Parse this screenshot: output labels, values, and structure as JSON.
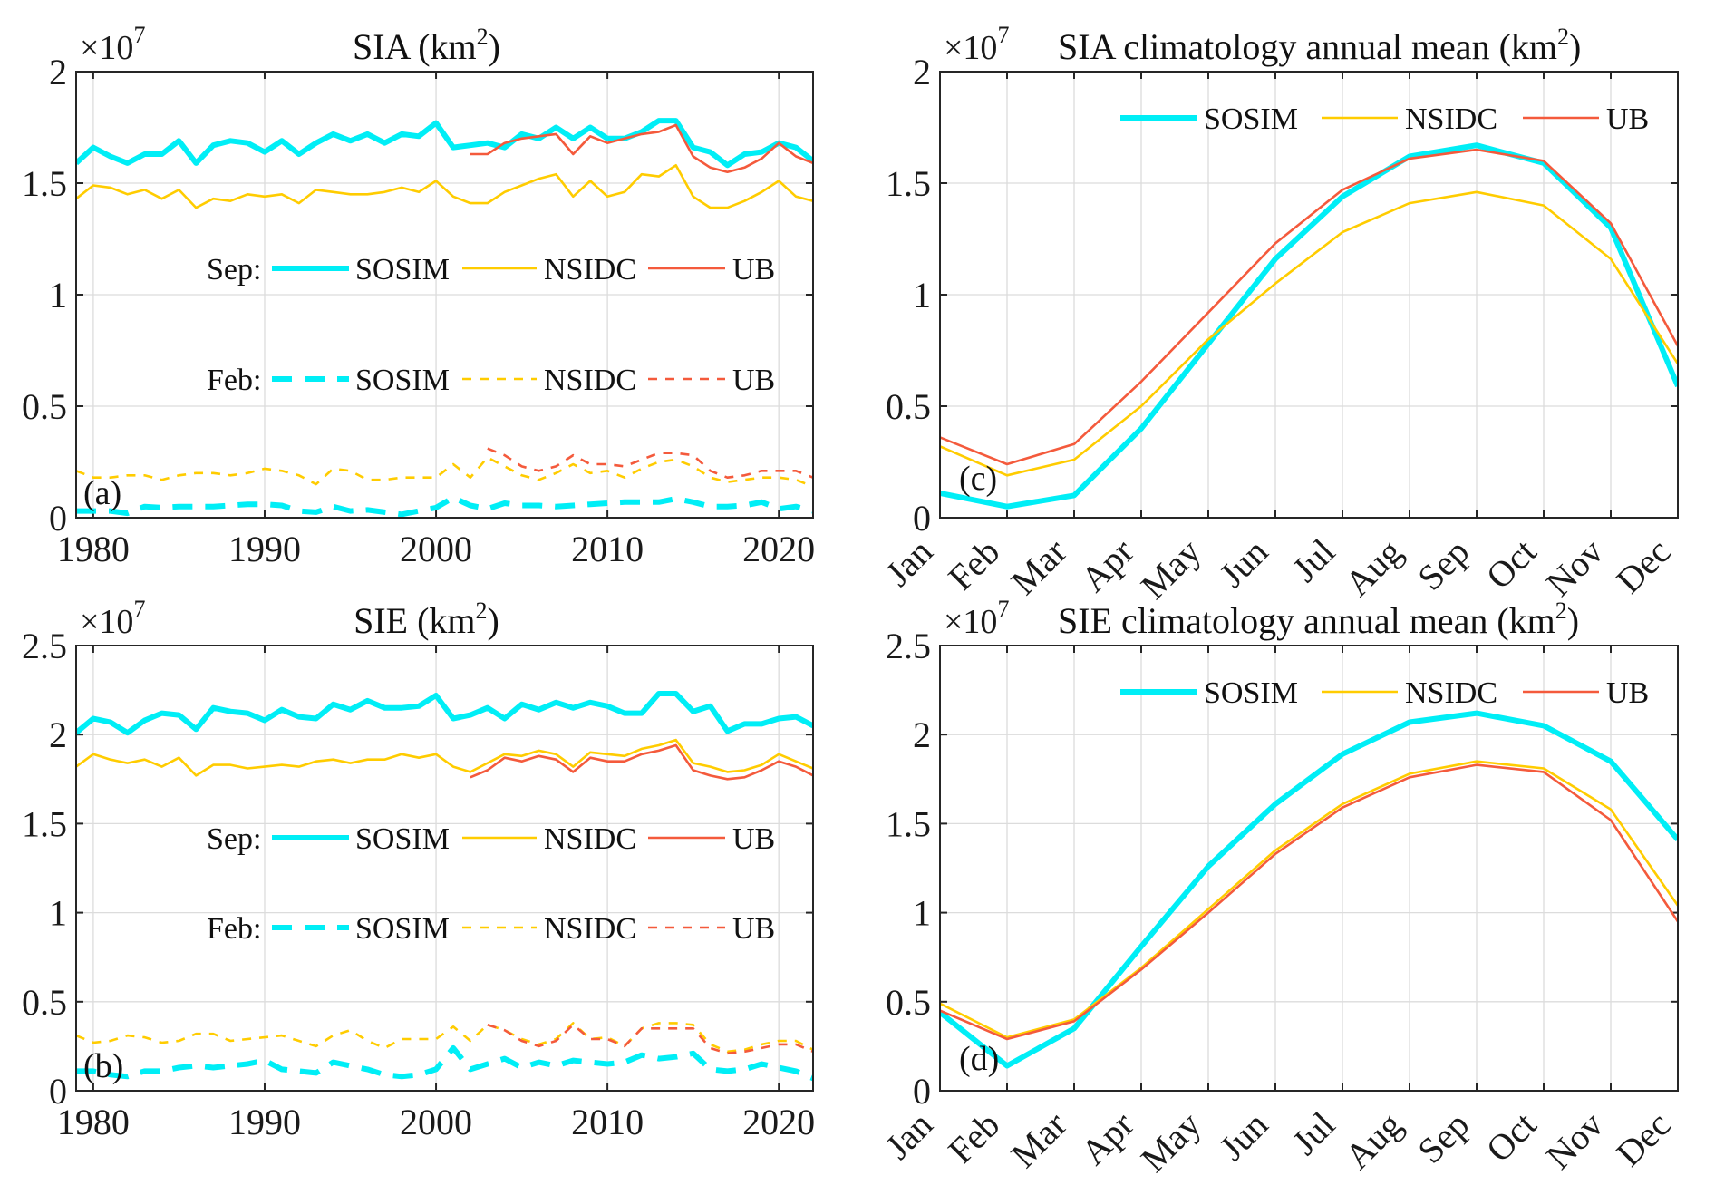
{
  "figure": {
    "colors": {
      "SOSIM": "#00EEF6",
      "NSIDC": "#FFCC00",
      "UB": "#F45A3C"
    }
  },
  "chart_data": [
    {
      "id": "a",
      "type": "line",
      "panel_label": "(a)",
      "title": "SIA (km",
      "title_sup": "2",
      "title_close": ")",
      "multiplier": "×10",
      "multiplier_exp": "7",
      "xlabel": "",
      "ylabel": "",
      "xlim": [
        1979,
        2022
      ],
      "ylim": [
        0,
        2
      ],
      "xticks": [
        1980,
        1990,
        2000,
        2010,
        2020
      ],
      "xticklabels": [
        "1980",
        "1990",
        "2000",
        "2010",
        "2020"
      ],
      "yticks": [
        0,
        0.5,
        1,
        1.5,
        2
      ],
      "yticklabels": [
        "0",
        "0.5",
        "1",
        "1.5",
        "2"
      ],
      "grid": true,
      "legend": {
        "placement": "center",
        "rows": [
          {
            "label": "Sep:",
            "entries": [
              "SOSIM",
              "NSIDC",
              "UB"
            ],
            "style": "solid"
          },
          {
            "label": "Feb:",
            "entries": [
              "SOSIM",
              "NSIDC",
              "UB"
            ],
            "style": "dashed"
          }
        ]
      },
      "series": [
        {
          "name": "SOSIM",
          "month": "Sep",
          "style": "solid",
          "start": 1979,
          "values": [
            1.59,
            1.66,
            1.62,
            1.59,
            1.63,
            1.63,
            1.69,
            1.59,
            1.67,
            1.69,
            1.68,
            1.64,
            1.69,
            1.63,
            1.68,
            1.72,
            1.69,
            1.72,
            1.68,
            1.72,
            1.71,
            1.77,
            1.66,
            1.67,
            1.68,
            1.66,
            1.72,
            1.7,
            1.75,
            1.7,
            1.75,
            1.7,
            1.7,
            1.73,
            1.78,
            1.78,
            1.66,
            1.64,
            1.58,
            1.63,
            1.64,
            1.68,
            1.66,
            1.6
          ]
        },
        {
          "name": "NSIDC",
          "month": "Sep",
          "style": "solid",
          "start": 1979,
          "values": [
            1.43,
            1.49,
            1.48,
            1.45,
            1.47,
            1.43,
            1.47,
            1.39,
            1.43,
            1.42,
            1.45,
            1.44,
            1.45,
            1.41,
            1.47,
            1.46,
            1.45,
            1.45,
            1.46,
            1.48,
            1.46,
            1.51,
            1.44,
            1.41,
            1.41,
            1.46,
            1.49,
            1.52,
            1.54,
            1.44,
            1.51,
            1.44,
            1.46,
            1.54,
            1.53,
            1.58,
            1.44,
            1.39,
            1.39,
            1.42,
            1.46,
            1.51,
            1.44,
            1.42
          ]
        },
        {
          "name": "UB",
          "month": "Sep",
          "style": "solid",
          "start": 2002,
          "values": [
            1.63,
            1.63,
            1.68,
            1.7,
            1.71,
            1.72,
            1.63,
            1.71,
            1.68,
            1.7,
            1.72,
            1.73,
            1.76,
            1.62,
            1.57,
            1.55,
            1.57,
            1.61,
            1.68,
            1.62,
            1.59
          ]
        },
        {
          "name": "SOSIM",
          "month": "Feb",
          "style": "dashed",
          "start": 1979,
          "values": [
            0.03,
            0.03,
            0.03,
            0.02,
            0.05,
            0.045,
            0.05,
            0.05,
            0.05,
            0.055,
            0.06,
            0.06,
            0.055,
            0.03,
            0.025,
            0.05,
            0.03,
            0.035,
            0.025,
            0.015,
            0.03,
            0.045,
            0.09,
            0.055,
            0.04,
            0.065,
            0.055,
            0.055,
            0.05,
            0.055,
            0.06,
            0.065,
            0.07,
            0.07,
            0.07,
            0.085,
            0.07,
            0.05,
            0.05,
            0.055,
            0.07,
            0.04,
            0.05,
            0.03
          ]
        },
        {
          "name": "NSIDC",
          "month": "Feb",
          "style": "dashed",
          "start": 1979,
          "values": [
            0.21,
            0.18,
            0.18,
            0.19,
            0.19,
            0.17,
            0.19,
            0.2,
            0.2,
            0.19,
            0.2,
            0.22,
            0.21,
            0.19,
            0.15,
            0.22,
            0.21,
            0.17,
            0.17,
            0.18,
            0.18,
            0.18,
            0.24,
            0.18,
            0.27,
            0.23,
            0.19,
            0.17,
            0.2,
            0.24,
            0.2,
            0.21,
            0.18,
            0.22,
            0.25,
            0.26,
            0.23,
            0.18,
            0.16,
            0.17,
            0.18,
            0.18,
            0.17,
            0.14
          ]
        },
        {
          "name": "UB",
          "month": "Feb",
          "style": "dashed",
          "start": 2003,
          "values": [
            0.31,
            0.28,
            0.23,
            0.21,
            0.23,
            0.28,
            0.24,
            0.24,
            0.23,
            0.26,
            0.29,
            0.29,
            0.28,
            0.21,
            0.18,
            0.19,
            0.21,
            0.21,
            0.21,
            0.18
          ]
        }
      ]
    },
    {
      "id": "b",
      "type": "line",
      "panel_label": "(b)",
      "title": "SIE (km",
      "title_sup": "2",
      "title_close": ")",
      "multiplier": "×10",
      "multiplier_exp": "7",
      "xlabel": "",
      "ylabel": "",
      "xlim": [
        1979,
        2022
      ],
      "ylim": [
        0,
        2.5
      ],
      "xticks": [
        1980,
        1990,
        2000,
        2010,
        2020
      ],
      "xticklabels": [
        "1980",
        "1990",
        "2000",
        "2010",
        "2020"
      ],
      "yticks": [
        0,
        0.5,
        1,
        1.5,
        2,
        2.5
      ],
      "yticklabels": [
        "0",
        "0.5",
        "1",
        "1.5",
        "2",
        "2.5"
      ],
      "grid": true,
      "legend": {
        "placement": "center",
        "rows": [
          {
            "label": "Sep:",
            "entries": [
              "SOSIM",
              "NSIDC",
              "UB"
            ],
            "style": "solid"
          },
          {
            "label": "Feb:",
            "entries": [
              "SOSIM",
              "NSIDC",
              "UB"
            ],
            "style": "dashed"
          }
        ]
      },
      "series": [
        {
          "name": "SOSIM",
          "month": "Sep",
          "style": "solid",
          "start": 1979,
          "values": [
            2.01,
            2.09,
            2.07,
            2.01,
            2.08,
            2.12,
            2.11,
            2.03,
            2.15,
            2.13,
            2.12,
            2.08,
            2.14,
            2.1,
            2.09,
            2.17,
            2.14,
            2.19,
            2.15,
            2.15,
            2.16,
            2.22,
            2.09,
            2.11,
            2.15,
            2.09,
            2.17,
            2.14,
            2.18,
            2.15,
            2.18,
            2.16,
            2.12,
            2.12,
            2.23,
            2.23,
            2.13,
            2.16,
            2.02,
            2.06,
            2.06,
            2.09,
            2.1,
            2.05
          ]
        },
        {
          "name": "NSIDC",
          "month": "Sep",
          "style": "solid",
          "start": 1979,
          "values": [
            1.82,
            1.89,
            1.86,
            1.84,
            1.86,
            1.82,
            1.87,
            1.77,
            1.83,
            1.83,
            1.81,
            1.82,
            1.83,
            1.82,
            1.85,
            1.86,
            1.84,
            1.86,
            1.86,
            1.89,
            1.87,
            1.89,
            1.82,
            1.79,
            1.84,
            1.89,
            1.88,
            1.91,
            1.89,
            1.82,
            1.9,
            1.89,
            1.88,
            1.92,
            1.94,
            1.97,
            1.84,
            1.82,
            1.79,
            1.8,
            1.83,
            1.89,
            1.85,
            1.81
          ]
        },
        {
          "name": "UB",
          "month": "Sep",
          "style": "solid",
          "start": 2002,
          "values": [
            1.76,
            1.8,
            1.87,
            1.85,
            1.88,
            1.86,
            1.79,
            1.87,
            1.85,
            1.85,
            1.89,
            1.91,
            1.94,
            1.8,
            1.77,
            1.75,
            1.76,
            1.8,
            1.85,
            1.82,
            1.77
          ]
        },
        {
          "name": "SOSIM",
          "month": "Feb",
          "style": "dashed",
          "start": 1979,
          "values": [
            0.11,
            0.11,
            0.09,
            0.08,
            0.11,
            0.11,
            0.13,
            0.14,
            0.13,
            0.14,
            0.15,
            0.17,
            0.12,
            0.11,
            0.1,
            0.16,
            0.14,
            0.12,
            0.09,
            0.08,
            0.09,
            0.12,
            0.24,
            0.12,
            0.15,
            0.18,
            0.13,
            0.16,
            0.14,
            0.17,
            0.16,
            0.15,
            0.16,
            0.2,
            0.18,
            0.19,
            0.21,
            0.12,
            0.11,
            0.12,
            0.15,
            0.13,
            0.11,
            0.07
          ]
        },
        {
          "name": "NSIDC",
          "month": "Feb",
          "style": "dashed",
          "start": 1979,
          "values": [
            0.31,
            0.27,
            0.28,
            0.31,
            0.3,
            0.27,
            0.28,
            0.32,
            0.32,
            0.28,
            0.29,
            0.3,
            0.31,
            0.28,
            0.25,
            0.31,
            0.34,
            0.28,
            0.24,
            0.29,
            0.29,
            0.29,
            0.36,
            0.28,
            0.37,
            0.34,
            0.29,
            0.26,
            0.29,
            0.38,
            0.29,
            0.3,
            0.25,
            0.35,
            0.38,
            0.38,
            0.37,
            0.26,
            0.22,
            0.23,
            0.26,
            0.28,
            0.28,
            0.23
          ]
        },
        {
          "name": "UB",
          "month": "Feb",
          "style": "dashed",
          "start": 2003,
          "values": [
            0.37,
            0.34,
            0.28,
            0.25,
            0.28,
            0.37,
            0.29,
            0.29,
            0.25,
            0.35,
            0.35,
            0.35,
            0.35,
            0.24,
            0.21,
            0.22,
            0.24,
            0.26,
            0.26,
            0.22
          ]
        }
      ]
    },
    {
      "id": "c",
      "type": "line",
      "panel_label": "(c)",
      "title": "SIA climatology annual mean (km",
      "title_sup": "2",
      "title_close": ")",
      "multiplier": "×10",
      "multiplier_exp": "7",
      "xlabel": "",
      "ylabel": "",
      "categories": [
        "Jan",
        "Feb",
        "Mar",
        "Apr",
        "May",
        "Jun",
        "Jul",
        "Aug",
        "Sep",
        "Oct",
        "Nov",
        "Dec"
      ],
      "ylim": [
        0,
        2
      ],
      "yticks": [
        0,
        0.5,
        1,
        1.5,
        2
      ],
      "yticklabels": [
        "0",
        "0.5",
        "1",
        "1.5",
        "2"
      ],
      "grid": true,
      "legend": {
        "placement": "top-right",
        "entries": [
          "SOSIM",
          "NSIDC",
          "UB"
        ]
      },
      "series": [
        {
          "name": "SOSIM",
          "values": [
            0.11,
            0.05,
            0.1,
            0.4,
            0.78,
            1.16,
            1.44,
            1.62,
            1.67,
            1.59,
            1.3,
            0.59
          ]
        },
        {
          "name": "NSIDC",
          "values": [
            0.32,
            0.19,
            0.26,
            0.5,
            0.8,
            1.05,
            1.28,
            1.41,
            1.46,
            1.4,
            1.16,
            0.69
          ]
        },
        {
          "name": "UB",
          "values": [
            0.36,
            0.24,
            0.33,
            0.61,
            0.92,
            1.23,
            1.47,
            1.61,
            1.65,
            1.6,
            1.32,
            0.77
          ]
        }
      ]
    },
    {
      "id": "d",
      "type": "line",
      "panel_label": "(d)",
      "title": "SIE climatology annual mean (km",
      "title_sup": "2",
      "title_close": ")",
      "multiplier": "×10",
      "multiplier_exp": "7",
      "xlabel": "",
      "ylabel": "",
      "categories": [
        "Jan",
        "Feb",
        "Mar",
        "Apr",
        "May",
        "Jun",
        "Jul",
        "Aug",
        "Sep",
        "Oct",
        "Nov",
        "Dec"
      ],
      "ylim": [
        0,
        2.5
      ],
      "yticks": [
        0,
        0.5,
        1,
        1.5,
        2,
        2.5
      ],
      "yticklabels": [
        "0",
        "0.5",
        "1",
        "1.5",
        "2",
        "2.5"
      ],
      "grid": true,
      "legend": {
        "placement": "top-right",
        "entries": [
          "SOSIM",
          "NSIDC",
          "UB"
        ]
      },
      "series": [
        {
          "name": "SOSIM",
          "values": [
            0.44,
            0.14,
            0.35,
            0.81,
            1.26,
            1.61,
            1.89,
            2.07,
            2.12,
            2.05,
            1.85,
            1.41
          ]
        },
        {
          "name": "NSIDC",
          "values": [
            0.49,
            0.3,
            0.4,
            0.69,
            1.02,
            1.35,
            1.61,
            1.78,
            1.85,
            1.81,
            1.58,
            1.04
          ]
        },
        {
          "name": "UB",
          "values": [
            0.45,
            0.29,
            0.39,
            0.68,
            1.0,
            1.33,
            1.59,
            1.76,
            1.83,
            1.79,
            1.52,
            0.95
          ]
        }
      ]
    }
  ]
}
